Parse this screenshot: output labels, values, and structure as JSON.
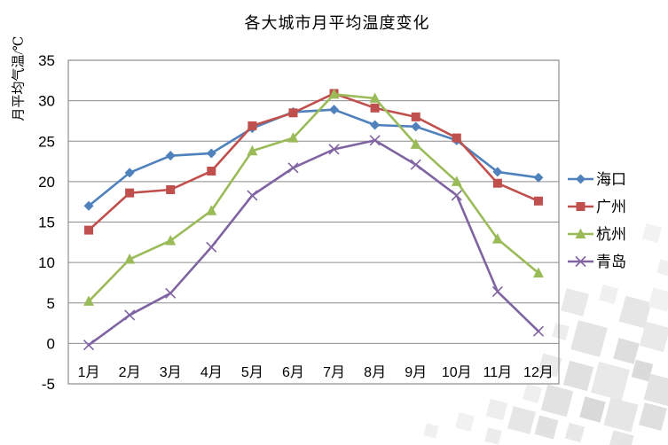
{
  "page": {
    "background": "#ffffff",
    "title_text": "各大城市月平均温度变化"
  },
  "chart_data": {
    "type": "line",
    "title": "各大城市月平均温度变化",
    "xlabel": "",
    "ylabel": "月平均气温/℃",
    "categories": [
      "1月",
      "2月",
      "3月",
      "4月",
      "5月",
      "6月",
      "7月",
      "8月",
      "9月",
      "10月",
      "11月",
      "12月"
    ],
    "series": [
      {
        "name": "海口",
        "marker": "diamond",
        "color": "#4F81BD",
        "values": [
          17.0,
          21.1,
          23.2,
          23.5,
          26.6,
          28.6,
          28.9,
          27.0,
          26.8,
          25.1,
          21.2,
          20.5
        ]
      },
      {
        "name": "广州",
        "marker": "square",
        "color": "#C0504D",
        "values": [
          14.0,
          18.6,
          19.0,
          21.3,
          26.9,
          28.5,
          30.9,
          29.1,
          28.0,
          25.4,
          19.8,
          17.6
        ]
      },
      {
        "name": "杭州",
        "marker": "triangle",
        "color": "#9BBB59",
        "values": [
          5.2,
          10.4,
          12.7,
          16.4,
          23.8,
          25.4,
          30.8,
          30.3,
          24.6,
          20.0,
          12.9,
          8.7
        ]
      },
      {
        "name": "青岛",
        "marker": "x",
        "color": "#8064A2",
        "values": [
          -0.2,
          3.5,
          6.2,
          11.9,
          18.3,
          21.7,
          24.0,
          25.1,
          22.1,
          18.3,
          6.4,
          1.5
        ]
      }
    ],
    "ylim": [
      -5,
      35
    ],
    "ytick_step": 5,
    "yticks": [
      "35",
      "30",
      "25",
      "20",
      "15",
      "10",
      "5",
      "0",
      "-5"
    ],
    "grid": true,
    "legend_position": "right",
    "colors": {
      "gridline": "#8C8C8C",
      "plot_border": "#8C8C8C",
      "text": "#000000",
      "background": "#FFFFFF"
    }
  }
}
